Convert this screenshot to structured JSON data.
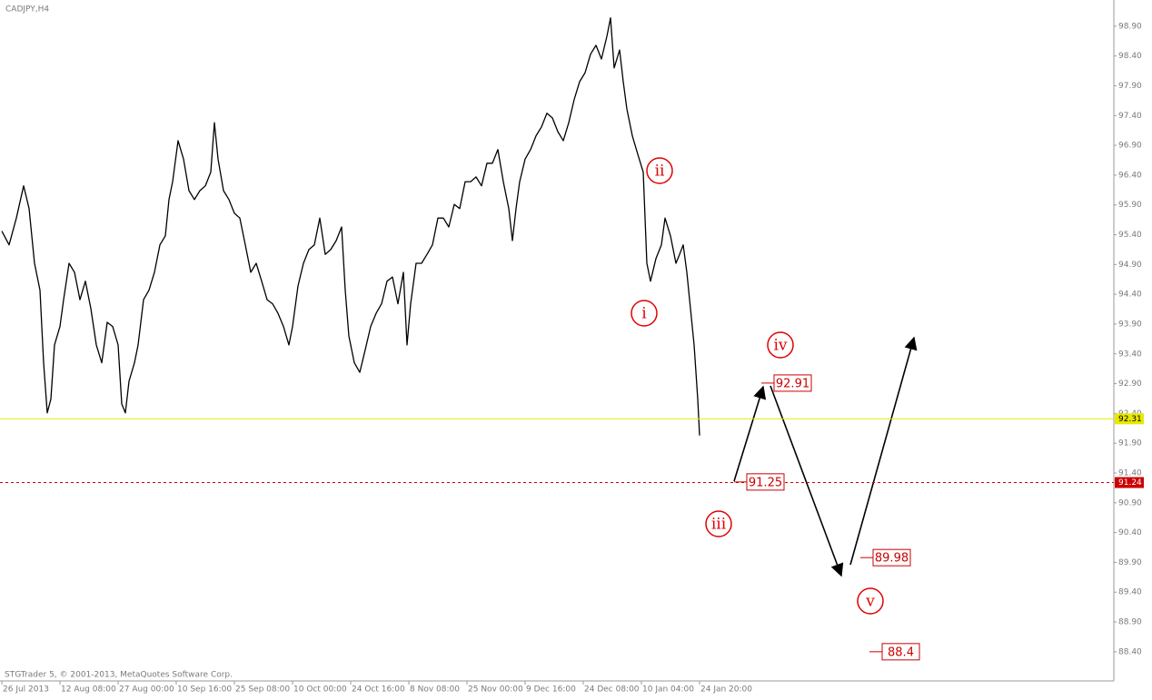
{
  "chart_data": {
    "type": "line",
    "title": "CADJPY,H4",
    "footer": "STGTrader 5, © 2001-2013, MetaQuotes Software Corp.",
    "xlim": [
      0,
      1226
    ],
    "xticks": [
      {
        "value": 2,
        "label": "26 Jul 2013"
      },
      {
        "value": 66,
        "label": "12 Aug 08:00"
      },
      {
        "value": 130,
        "label": "27 Aug 00:00"
      },
      {
        "value": 194,
        "label": "10 Sep 16:00"
      },
      {
        "value": 258,
        "label": "25 Sep 08:00"
      },
      {
        "value": 322,
        "label": "10 Oct 00:00"
      },
      {
        "value": 386,
        "label": "24 Oct 16:00"
      },
      {
        "value": 450,
        "label": "8 Nov 08:00"
      },
      {
        "value": 514,
        "label": "25 Nov 00:00"
      },
      {
        "value": 578,
        "label": "9 Dec 16:00"
      },
      {
        "value": 642,
        "label": "24 Dec 08:00"
      },
      {
        "value": 706,
        "label": "10 Jan 04:00"
      },
      {
        "value": 770,
        "label": "24 Jan 20:00"
      }
    ],
    "ylim": [
      87.91,
      99.34
    ],
    "yticks": [
      {
        "value": 98.9,
        "label": "98.90"
      },
      {
        "value": 98.4,
        "label": "98.40"
      },
      {
        "value": 97.9,
        "label": "97.90"
      },
      {
        "value": 97.4,
        "label": "97.40"
      },
      {
        "value": 96.9,
        "label": "96.90"
      },
      {
        "value": 96.4,
        "label": "96.40"
      },
      {
        "value": 95.9,
        "label": "95.90"
      },
      {
        "value": 95.4,
        "label": "95.40"
      },
      {
        "value": 94.9,
        "label": "94.90"
      },
      {
        "value": 94.4,
        "label": "94.40"
      },
      {
        "value": 93.9,
        "label": "93.90"
      },
      {
        "value": 93.4,
        "label": "93.40"
      },
      {
        "value": 92.9,
        "label": "92.90"
      },
      {
        "value": 92.4,
        "label": "92.40"
      },
      {
        "value": 91.9,
        "label": "91.90"
      },
      {
        "value": 91.4,
        "label": "91.40"
      },
      {
        "value": 90.9,
        "label": "90.90"
      },
      {
        "value": 90.4,
        "label": "90.40"
      },
      {
        "value": 89.9,
        "label": "89.90"
      },
      {
        "value": 89.4,
        "label": "89.40"
      },
      {
        "value": 88.9,
        "label": "88.90"
      },
      {
        "value": 88.4,
        "label": "88.40"
      }
    ],
    "x": [
      2,
      10,
      18,
      26,
      32,
      38,
      44,
      48,
      52,
      56,
      60,
      66,
      70,
      76,
      82,
      88,
      94,
      100,
      106,
      112,
      118,
      124,
      130,
      134,
      138,
      142,
      148,
      152,
      158,
      164,
      170,
      176,
      182,
      186,
      190,
      196,
      202,
      208,
      214,
      220,
      226,
      232,
      236,
      240,
      246,
      252,
      258,
      264,
      270,
      276,
      282,
      288,
      294,
      300,
      306,
      312,
      318,
      322,
      328,
      334,
      340,
      346,
      352,
      358,
      364,
      370,
      376,
      380,
      384,
      390,
      396,
      402,
      408,
      414,
      420,
      426,
      432,
      438,
      444,
      448,
      452,
      458,
      464,
      470,
      476,
      482,
      488,
      494,
      500,
      506,
      512,
      518,
      524,
      530,
      536,
      542,
      548,
      554,
      560,
      564,
      568,
      572,
      578,
      584,
      590,
      596,
      602,
      608,
      614,
      620,
      626,
      632,
      638,
      644,
      650,
      656,
      662,
      668,
      672,
      676,
      682,
      686,
      690,
      696,
      702,
      708,
      712,
      716,
      722,
      728,
      732,
      738,
      744,
      748,
      752,
      756,
      760,
      764,
      768,
      770
    ],
    "series": [
      {
        "color": "#000000",
        "values": [
          95.46,
          95.23,
          95.68,
          96.22,
          95.84,
          94.92,
          94.47,
          93.25,
          92.41,
          92.64,
          93.55,
          93.86,
          94.31,
          94.92,
          94.77,
          94.31,
          94.62,
          94.16,
          93.55,
          93.25,
          93.93,
          93.86,
          93.55,
          92.56,
          92.41,
          92.94,
          93.25,
          93.55,
          94.31,
          94.47,
          94.77,
          95.23,
          95.38,
          95.99,
          96.29,
          96.98,
          96.67,
          96.14,
          95.99,
          96.14,
          96.22,
          96.45,
          97.28,
          96.67,
          96.14,
          95.99,
          95.76,
          95.68,
          95.23,
          94.77,
          94.92,
          94.62,
          94.31,
          94.24,
          94.08,
          93.86,
          93.55,
          93.86,
          94.54,
          94.92,
          95.15,
          95.23,
          95.68,
          95.07,
          95.15,
          95.3,
          95.53,
          94.47,
          93.7,
          93.25,
          93.09,
          93.47,
          93.86,
          94.08,
          94.24,
          94.62,
          94.69,
          94.24,
          94.77,
          93.55,
          94.24,
          94.92,
          94.92,
          95.07,
          95.23,
          95.68,
          95.68,
          95.53,
          95.91,
          95.84,
          96.29,
          96.29,
          96.37,
          96.22,
          96.6,
          96.6,
          96.83,
          96.29,
          95.84,
          95.3,
          95.84,
          96.29,
          96.67,
          96.83,
          97.06,
          97.21,
          97.44,
          97.36,
          97.13,
          96.98,
          97.28,
          97.67,
          97.97,
          98.12,
          98.43,
          98.58,
          98.35,
          98.73,
          99.04,
          98.2,
          98.5,
          97.97,
          97.51,
          97.06,
          96.75,
          96.45,
          94.92,
          94.62,
          95.0,
          95.23,
          95.68,
          95.38,
          94.92,
          95.07,
          95.23,
          94.77,
          94.16,
          93.55,
          92.64,
          92.03
        ]
      }
    ],
    "levels": [
      {
        "value": 92.31,
        "color": "#e8e800",
        "tag_text_color": "#000000",
        "dashed": false
      },
      {
        "value": 91.24,
        "color": "#cc0000",
        "tag_text_color": "#ffffff",
        "dashed": true
      }
    ],
    "waves": [
      "ii",
      "i",
      "iii",
      "iv",
      "v"
    ],
    "targets": [
      92.91,
      91.25,
      89.98,
      88.4
    ]
  }
}
